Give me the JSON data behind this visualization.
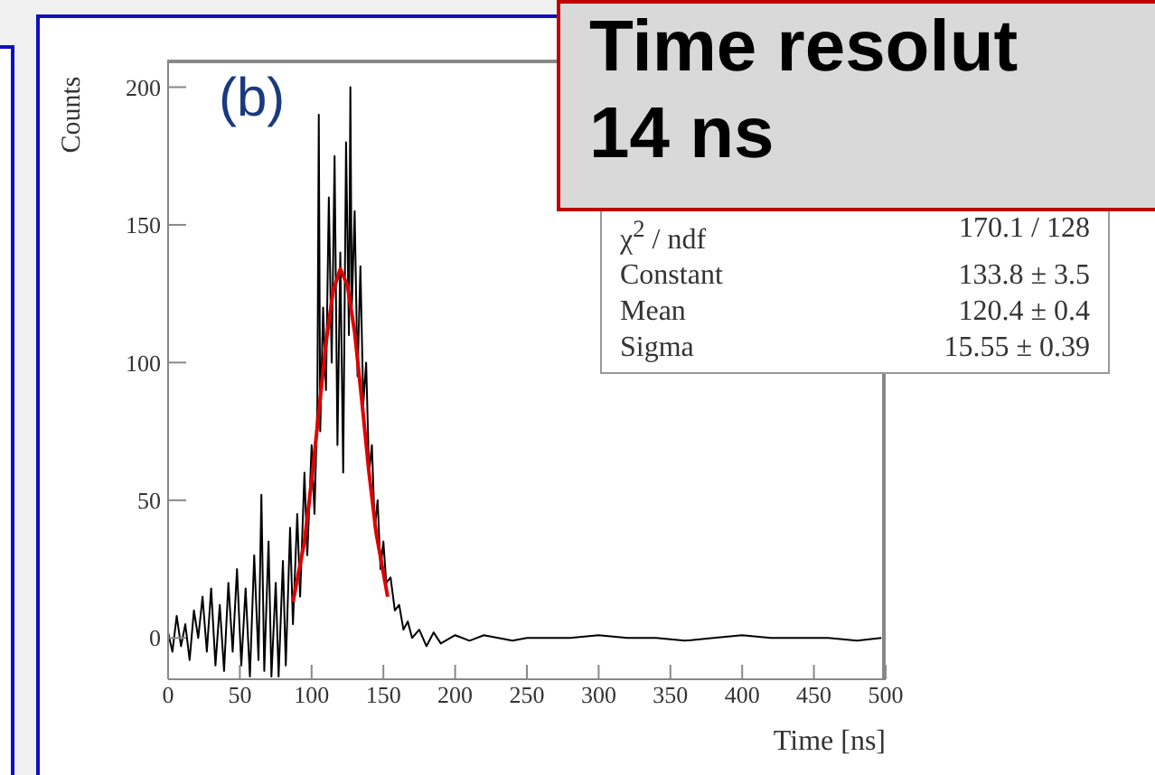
{
  "chart_data": {
    "type": "line",
    "title": "Time resolut",
    "subtitle": "14 ns",
    "xlabel": "Time [ns]",
    "ylabel": "Counts",
    "annotations": [
      "(b)",
      "χ$^{2}$ / ndf",
      "170.1 / 128",
      "Constant",
      "133.8 ± 3.5",
      "Mean",
      "120.4 ± 0.4",
      "Sigma",
      "15.55 ± 0.39"
    ],
    "xlim": [
      0,
      500
    ],
    "xticks": [
      0,
      50,
      100,
      150,
      200,
      250,
      300,
      350,
      400,
      450,
      500
    ],
    "ylim": [
      -15,
      210
    ],
    "yticks": [
      0,
      50,
      100,
      150,
      200
    ],
    "marker": "none",
    "line_style": "solid",
    "series": [
      {
        "color": "#000000",
        "x": [
          0,
          3,
          6,
          9,
          12,
          15,
          18,
          21,
          24,
          27,
          30,
          33,
          36,
          39,
          42,
          45,
          48,
          51,
          54,
          57,
          60,
          63,
          65,
          67,
          70,
          72,
          75,
          77,
          80,
          82,
          85,
          87,
          90,
          92,
          95,
          97,
          100,
          102,
          104,
          105,
          106,
          108,
          110,
          112,
          114,
          116,
          118,
          120,
          122,
          124,
          126,
          127,
          128,
          130,
          132,
          134,
          136,
          138,
          140,
          142,
          144,
          146,
          148,
          150,
          152,
          155,
          158,
          161,
          164,
          167,
          170,
          175,
          180,
          185,
          190,
          200,
          210,
          220,
          230,
          240,
          250,
          260,
          280,
          300,
          320,
          340,
          360,
          380,
          400,
          420,
          440,
          460,
          480,
          497
        ],
        "values": [
          2,
          -5,
          8,
          -3,
          5,
          -8,
          10,
          0,
          15,
          -5,
          18,
          -10,
          12,
          -12,
          20,
          -5,
          25,
          -10,
          18,
          -14,
          30,
          -8,
          52,
          -12,
          35,
          -14,
          20,
          -14,
          28,
          -10,
          40,
          5,
          45,
          15,
          60,
          30,
          70,
          45,
          85,
          190,
          75,
          120,
          90,
          160,
          100,
          175,
          70,
          140,
          60,
          180,
          110,
          200,
          120,
          155,
          95,
          135,
          85,
          100,
          60,
          70,
          40,
          50,
          25,
          35,
          20,
          22,
          10,
          12,
          3,
          6,
          0,
          3,
          -3,
          2,
          -2,
          1,
          -1,
          1,
          0,
          -1,
          0,
          0,
          0,
          1,
          0,
          0,
          -1,
          0,
          1,
          0,
          0,
          0,
          -1,
          0
        ]
      },
      {
        "color": "#e00000",
        "x": [
          87,
          95,
          100,
          105,
          110,
          115,
          120,
          125,
          130,
          135,
          140,
          145,
          153
        ],
        "values": [
          13,
          35,
          57,
          82,
          107,
          126,
          134,
          128,
          111,
          86,
          60,
          38,
          15
        ]
      }
    ]
  }
}
